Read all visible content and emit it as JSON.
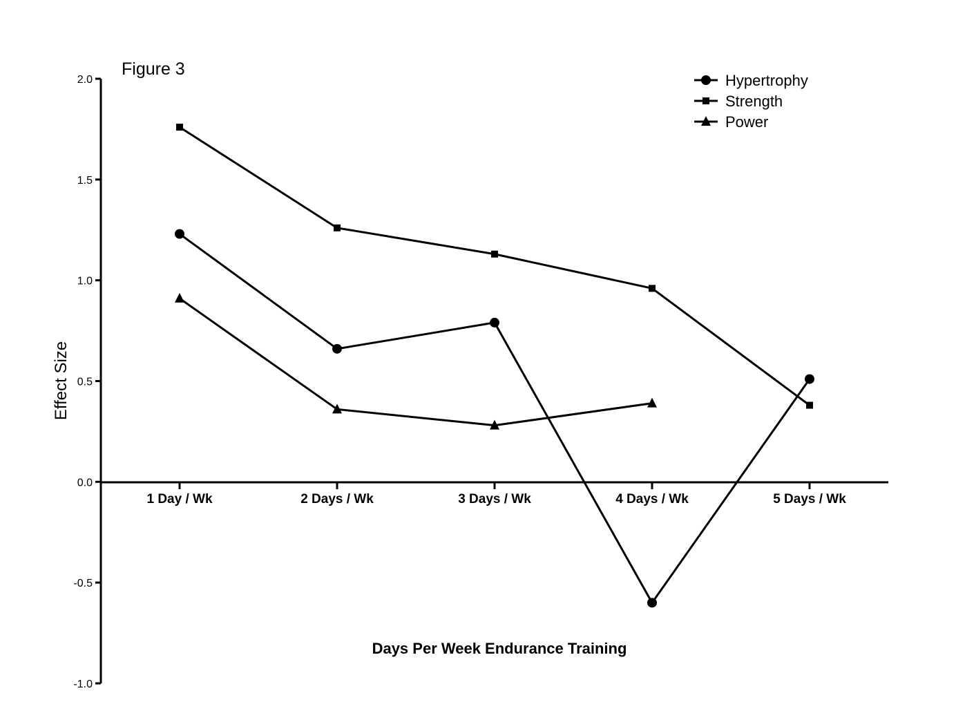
{
  "figure_label": "Figure 3",
  "chart_data": {
    "type": "line",
    "title": "",
    "xlabel": "Days Per Week Endurance Training",
    "ylabel": "Effect Size",
    "categories": [
      "1 Day / Wk",
      "2 Days / Wk",
      "3 Days / Wk",
      "4 Days / Wk",
      "5 Days / Wk"
    ],
    "yticks": [
      "-1.0",
      "-0.5",
      "0.0",
      "0.5",
      "1.0",
      "1.5",
      "2.0"
    ],
    "ylim": [
      -1.0,
      2.0
    ],
    "grid": false,
    "legend_position": "top-right",
    "series": [
      {
        "name": "Hypertrophy",
        "marker": "circle",
        "values": [
          1.23,
          0.66,
          0.79,
          -0.6,
          0.51
        ]
      },
      {
        "name": "Strength",
        "marker": "square",
        "values": [
          1.76,
          1.26,
          1.13,
          0.96,
          0.38
        ]
      },
      {
        "name": "Power",
        "marker": "triangle",
        "values": [
          0.91,
          0.36,
          0.28,
          0.39,
          null
        ]
      }
    ]
  }
}
